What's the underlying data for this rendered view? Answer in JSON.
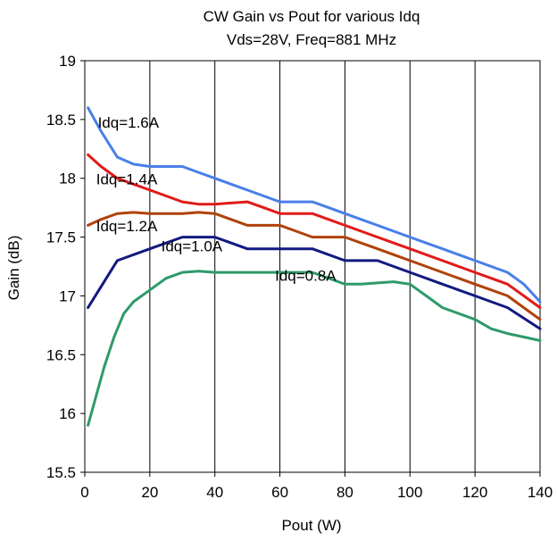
{
  "chart_data": {
    "type": "line",
    "title": "CW Gain vs Pout for various Idq",
    "subtitle": "Vds=28V, Freq=881 MHz",
    "xlabel": "Pout (W)",
    "ylabel": "Gain (dB)",
    "xlim": [
      0,
      140
    ],
    "ylim": [
      15.5,
      19
    ],
    "xticks": [
      0,
      20,
      40,
      60,
      80,
      100,
      120,
      140
    ],
    "yticks": [
      15.5,
      16,
      16.5,
      17,
      17.5,
      18,
      18.5,
      19
    ],
    "xtick_labels": [
      "0",
      "20",
      "40",
      "60",
      "80",
      "100",
      "120",
      "140"
    ],
    "ytick_labels": [
      "15.5",
      "16",
      "16.5",
      "17",
      "17.5",
      "18",
      "18.5",
      "19"
    ],
    "grid": {
      "vertical": true,
      "horizontal": false
    },
    "legend": "none",
    "series": [
      {
        "name": "Idq=1.6A",
        "color": "#4a7fe8",
        "x": [
          1,
          5,
          10,
          15,
          20,
          25,
          30,
          35,
          40,
          45,
          50,
          55,
          60,
          65,
          70,
          75,
          80,
          85,
          90,
          95,
          100,
          105,
          110,
          115,
          120,
          125,
          130,
          135,
          140
        ],
        "y": [
          18.6,
          18.4,
          18.18,
          18.12,
          18.1,
          18.1,
          18.1,
          18.05,
          18.0,
          17.95,
          17.9,
          17.85,
          17.8,
          17.8,
          17.8,
          17.75,
          17.7,
          17.65,
          17.6,
          17.55,
          17.5,
          17.45,
          17.4,
          17.35,
          17.3,
          17.25,
          17.2,
          17.1,
          16.95
        ]
      },
      {
        "name": "Idq=1.4A",
        "color": "#e21a1a",
        "x": [
          1,
          5,
          10,
          15,
          20,
          25,
          30,
          35,
          40,
          45,
          50,
          55,
          60,
          65,
          70,
          75,
          80,
          85,
          90,
          95,
          100,
          105,
          110,
          115,
          120,
          125,
          130,
          135,
          140
        ],
        "y": [
          18.2,
          18.1,
          18.0,
          17.95,
          17.9,
          17.85,
          17.8,
          17.78,
          17.78,
          17.79,
          17.8,
          17.75,
          17.7,
          17.7,
          17.7,
          17.65,
          17.6,
          17.55,
          17.5,
          17.45,
          17.4,
          17.35,
          17.3,
          17.25,
          17.2,
          17.15,
          17.1,
          17.0,
          16.9
        ]
      },
      {
        "name": "Idq=1.2A",
        "color": "#b0420b",
        "x": [
          1,
          5,
          10,
          15,
          20,
          25,
          30,
          35,
          40,
          45,
          50,
          55,
          60,
          65,
          70,
          75,
          80,
          85,
          90,
          95,
          100,
          105,
          110,
          115,
          120,
          125,
          130,
          135,
          140
        ],
        "y": [
          17.6,
          17.65,
          17.7,
          17.71,
          17.7,
          17.7,
          17.7,
          17.71,
          17.7,
          17.65,
          17.6,
          17.6,
          17.6,
          17.55,
          17.5,
          17.5,
          17.5,
          17.45,
          17.4,
          17.35,
          17.3,
          17.25,
          17.2,
          17.15,
          17.1,
          17.05,
          17.0,
          16.9,
          16.8
        ]
      },
      {
        "name": "Idq=1.0A",
        "color": "#111a80",
        "x": [
          1,
          10,
          20,
          30,
          40,
          50,
          60,
          70,
          80,
          90,
          100,
          110,
          120,
          130,
          140
        ],
        "y": [
          16.9,
          17.3,
          17.4,
          17.5,
          17.5,
          17.4,
          17.4,
          17.4,
          17.3,
          17.3,
          17.2,
          17.1,
          17.0,
          16.9,
          16.72
        ]
      },
      {
        "name": "Idq=0.8A",
        "color": "#2e9a6a",
        "x": [
          1,
          3,
          6,
          9,
          12,
          15,
          20,
          25,
          30,
          35,
          40,
          50,
          60,
          65,
          70,
          75,
          80,
          85,
          90,
          95,
          100,
          105,
          110,
          115,
          120,
          125,
          130,
          135,
          140
        ],
        "y": [
          15.9,
          16.1,
          16.4,
          16.65,
          16.85,
          16.95,
          17.05,
          17.15,
          17.2,
          17.21,
          17.2,
          17.2,
          17.2,
          17.2,
          17.2,
          17.15,
          17.1,
          17.1,
          17.11,
          17.12,
          17.1,
          17.0,
          16.9,
          16.85,
          16.8,
          16.72,
          16.68,
          16.65,
          16.62
        ]
      }
    ],
    "annotations": [
      {
        "text": "Idq=1.6A",
        "x": 4,
        "y": 18.43
      },
      {
        "text": "Idq=1.4A",
        "x": 3.5,
        "y": 17.95
      },
      {
        "text": "Idq=1.2A",
        "x": 3.5,
        "y": 17.55
      },
      {
        "text": "Idq=1.0A",
        "x": 23.5,
        "y": 17.38
      },
      {
        "text": "Idq=0.8A",
        "x": 58.5,
        "y": 17.13
      }
    ]
  }
}
